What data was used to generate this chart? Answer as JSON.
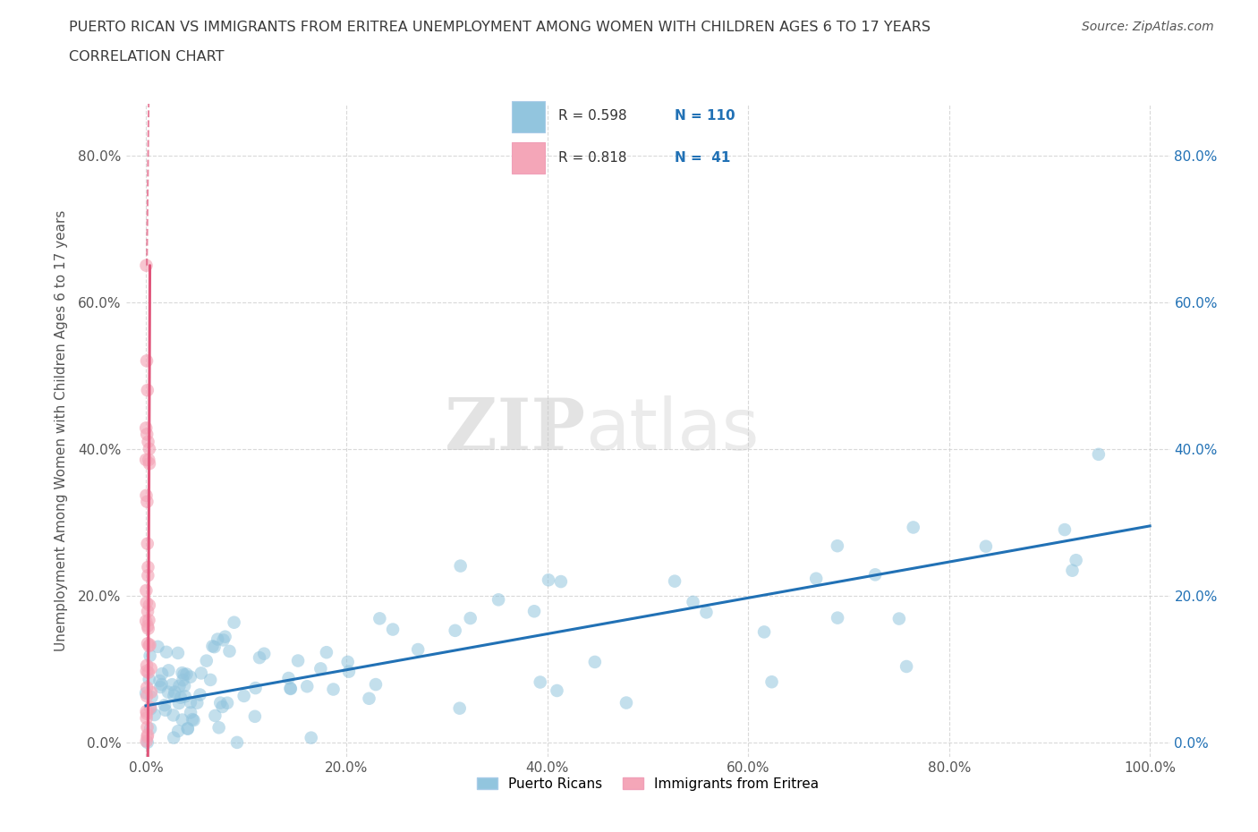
{
  "title_line1": "PUERTO RICAN VS IMMIGRANTS FROM ERITREA UNEMPLOYMENT AMONG WOMEN WITH CHILDREN AGES 6 TO 17 YEARS",
  "title_line2": "CORRELATION CHART",
  "source_text": "Source: ZipAtlas.com",
  "ylabel": "Unemployment Among Women with Children Ages 6 to 17 years",
  "xlim": [
    -0.02,
    1.02
  ],
  "ylim": [
    -0.02,
    0.87
  ],
  "xticks": [
    0.0,
    0.2,
    0.4,
    0.6,
    0.8,
    1.0
  ],
  "yticks": [
    0.0,
    0.2,
    0.4,
    0.6,
    0.8
  ],
  "xtick_labels": [
    "0.0%",
    "20.0%",
    "40.0%",
    "60.0%",
    "80.0%",
    "100.0%"
  ],
  "ytick_labels": [
    "0.0%",
    "20.0%",
    "40.0%",
    "60.0%",
    "80.0%"
  ],
  "blue_R": 0.598,
  "blue_N": 110,
  "pink_R": 0.818,
  "pink_N": 41,
  "blue_color": "#92c5de",
  "blue_line_color": "#2171b5",
  "pink_color": "#f4a6b8",
  "pink_line_color": "#e0547a",
  "watermark_zip": "ZIP",
  "watermark_atlas": "atlas",
  "legend_label_blue": "Puerto Ricans",
  "legend_label_pink": "Immigrants from Eritrea",
  "background_color": "#ffffff",
  "grid_color": "#d0d0d0",
  "title_color": "#3a3a3a",
  "axis_label_color": "#555555",
  "right_tick_color": "#2171b5",
  "left_tick_color": "#555555"
}
